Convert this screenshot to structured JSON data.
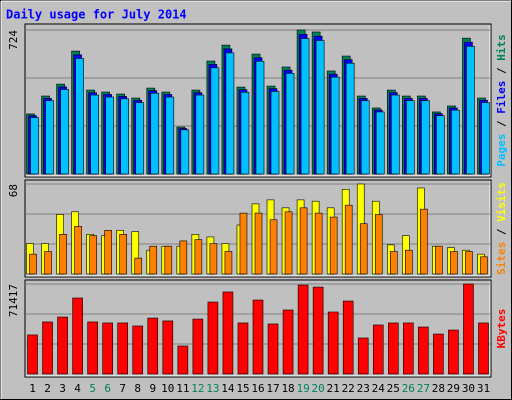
{
  "chart_data": [
    {
      "type": "bar",
      "title": "Daily usage for July 2014",
      "legend_separator": " / ",
      "ylim": [
        0,
        724
      ],
      "yticks": [
        724
      ],
      "series": [
        {
          "name": "Hits",
          "color": "#00805c",
          "values": [
            302,
            392,
            452,
            618,
            422,
            412,
            402,
            382,
            432,
            412,
            236,
            422,
            568,
            648,
            437,
            603,
            442,
            538,
            724,
            714,
            518,
            593,
            392,
            332,
            422,
            392,
            392,
            312,
            342,
            683,
            382
          ]
        },
        {
          "name": "Files",
          "color": "#0000ff",
          "values": [
            293,
            380,
            438,
            599,
            409,
            400,
            390,
            371,
            419,
            400,
            229,
            409,
            551,
            629,
            424,
            585,
            429,
            522,
            702,
            693,
            502,
            575,
            380,
            322,
            409,
            380,
            380,
            303,
            332,
            663,
            371
          ]
        },
        {
          "name": "Pages",
          "color": "#00c0ff",
          "values": [
            284,
            369,
            425,
            581,
            397,
            387,
            378,
            359,
            406,
            387,
            222,
            397,
            534,
            609,
            411,
            567,
            415,
            506,
            681,
            671,
            487,
            557,
            369,
            312,
            397,
            369,
            369,
            293,
            321,
            642,
            359
          ]
        }
      ]
    },
    {
      "type": "bar",
      "legend_separator": " / ",
      "ylim": [
        0,
        68
      ],
      "yticks": [
        68
      ],
      "series": [
        {
          "name": "Visits",
          "color": "#ffff00",
          "values": [
            23,
            23,
            45,
            47,
            30,
            29,
            33,
            32,
            18,
            21,
            21,
            30,
            28,
            23,
            37,
            53,
            56,
            50,
            56,
            55,
            50,
            64,
            68,
            55,
            22,
            29,
            65,
            21,
            20,
            18,
            15
          ]
        },
        {
          "name": "Sites",
          "color": "#ff8000",
          "values": [
            15,
            17,
            30,
            36,
            29,
            33,
            30,
            12,
            21,
            21,
            25,
            26,
            23,
            17,
            46,
            46,
            41,
            47,
            50,
            46,
            43,
            52,
            38,
            45,
            17,
            18,
            49,
            21,
            17,
            17,
            13
          ]
        }
      ]
    },
    {
      "type": "bar",
      "ylim": [
        0,
        71417
      ],
      "yticks": [
        71417
      ],
      "categories": [
        "1",
        "2",
        "3",
        "4",
        "5",
        "6",
        "7",
        "8",
        "9",
        "10",
        "11",
        "12",
        "13",
        "14",
        "15",
        "16",
        "17",
        "18",
        "19",
        "20",
        "21",
        "22",
        "23",
        "24",
        "25",
        "26",
        "27",
        "28",
        "29",
        "30",
        "31"
      ],
      "category_colors": [
        "#000000",
        "#000000",
        "#000000",
        "#000000",
        "#00805c",
        "#00805c",
        "#000000",
        "#000000",
        "#000000",
        "#000000",
        "#000000",
        "#00805c",
        "#00805c",
        "#000000",
        "#000000",
        "#000000",
        "#000000",
        "#000000",
        "#00805c",
        "#00805c",
        "#000000",
        "#000000",
        "#000000",
        "#000000",
        "#000000",
        "#00805c",
        "#00805c",
        "#000000",
        "#000000",
        "#000000",
        "#000000"
      ],
      "series": [
        {
          "name": "KBytes",
          "color": "#ff0000",
          "values": [
            31000,
            41300,
            45200,
            60300,
            41300,
            40500,
            40500,
            38100,
            44400,
            42100,
            22200,
            43600,
            57100,
            65100,
            40500,
            58700,
            39700,
            50800,
            70600,
            69000,
            49200,
            57900,
            28600,
            38900,
            40500,
            40500,
            37300,
            31700,
            34900,
            71417,
            40500
          ]
        }
      ]
    }
  ]
}
